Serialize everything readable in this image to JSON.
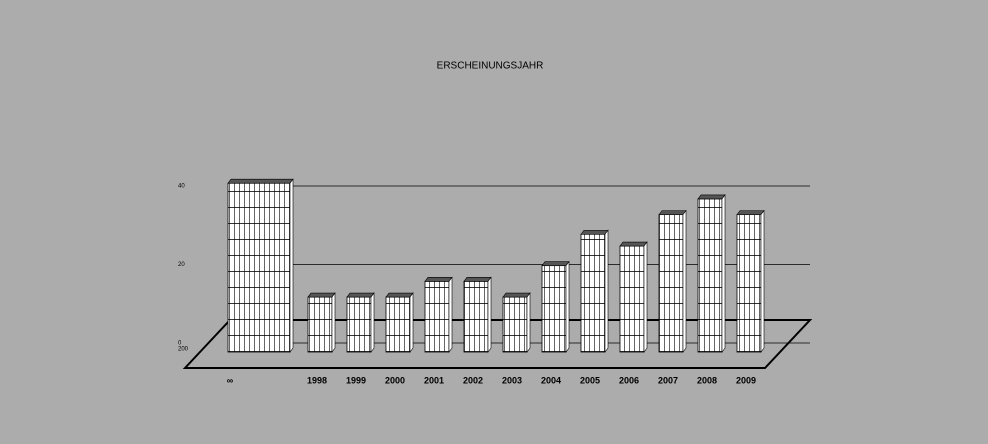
{
  "chart_data": {
    "type": "bar",
    "title": "ERSCHEINUNGSJAHR",
    "categories": [
      "∞",
      "1998",
      "1999",
      "2000",
      "2001",
      "2002",
      "2003",
      "2004",
      "2005",
      "2006",
      "2007",
      "2008",
      "2009"
    ],
    "values": [
      43,
      14,
      14,
      14,
      18,
      18,
      14,
      22,
      30,
      27,
      35,
      39,
      35
    ],
    "color": "#ffffff",
    "ylim": [
      0,
      40
    ],
    "yticks": [
      0,
      20,
      40
    ],
    "grid": true,
    "annotations": [
      "200"
    ]
  }
}
